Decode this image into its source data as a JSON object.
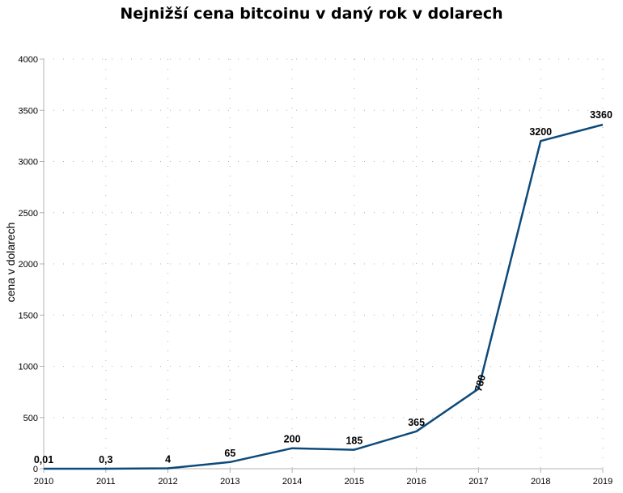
{
  "chart_data": {
    "type": "line",
    "title": "Nejnižší cena bitcoinu v daný rok v dolarech",
    "xlabel": "",
    "ylabel": "cena v dolarech",
    "x": [
      "2010",
      "2011",
      "2012",
      "2013",
      "2014",
      "2015",
      "2016",
      "2017",
      "2018",
      "2019"
    ],
    "values": [
      0.01,
      0.3,
      4,
      65,
      200,
      185,
      365,
      780,
      3200,
      3360
    ],
    "data_labels": [
      "0,01",
      "0,3",
      "4",
      "65",
      "200",
      "185",
      "365",
      "780",
      "3200",
      "3360"
    ],
    "ylim": [
      0,
      4000
    ],
    "yticks": [
      "0",
      "500",
      "1000",
      "1500",
      "2000",
      "2500",
      "3000",
      "3500",
      "4000"
    ],
    "grid": true,
    "legend": "none",
    "line_color": "#0d4a7a"
  }
}
